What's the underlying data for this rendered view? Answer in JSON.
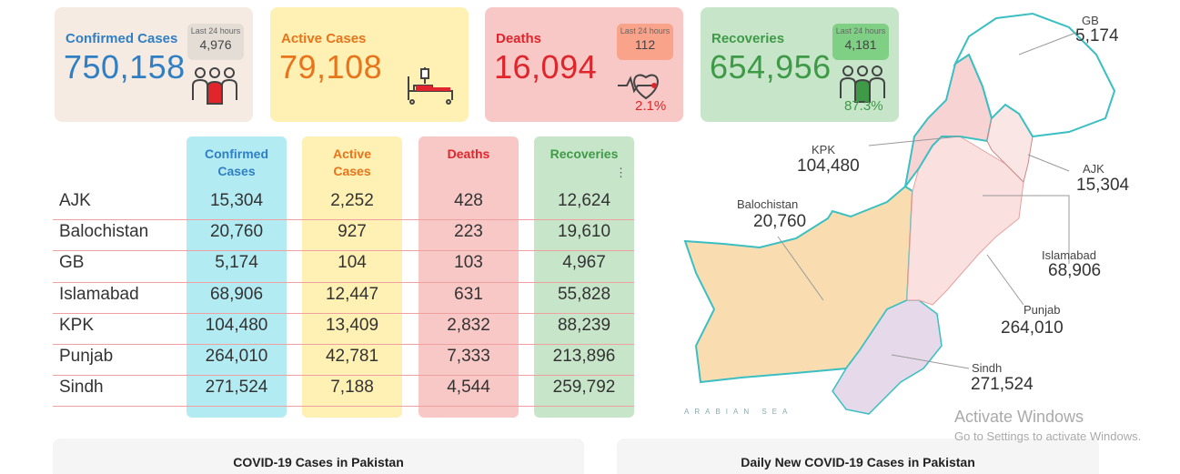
{
  "summary": {
    "confirmed": {
      "title": "Confirmed Cases",
      "value": "750,158",
      "last24_label": "Last 24 hours",
      "last24": "4,976",
      "color": "#2f7fc4"
    },
    "active": {
      "title": "Active Cases",
      "value": "79,108",
      "color": "#e8741b"
    },
    "deaths": {
      "title": "Deaths",
      "value": "16,094",
      "last24_label": "Last 24 hours",
      "last24": "112",
      "pct": "2.1%",
      "color": "#e0262c"
    },
    "recoveries": {
      "title": "Recoveries",
      "value": "654,956",
      "last24_label": "Last 24 hours",
      "last24": "4,181",
      "pct": "87.3%",
      "color": "#3e9a47"
    }
  },
  "table": {
    "headers": {
      "confirmed": "Confirmed Cases",
      "active": "Active Cases",
      "deaths": "Deaths",
      "recoveries": "Recoveries"
    },
    "menu_icon": "⋮",
    "rows": [
      {
        "name": "AJK",
        "confirmed": "15,304",
        "active": "2,252",
        "deaths": "428",
        "recoveries": "12,624"
      },
      {
        "name": "Balochistan",
        "confirmed": "20,760",
        "active": "927",
        "deaths": "223",
        "recoveries": "19,610"
      },
      {
        "name": "GB",
        "confirmed": "5,174",
        "active": "104",
        "deaths": "103",
        "recoveries": "4,967"
      },
      {
        "name": "Islamabad",
        "confirmed": "68,906",
        "active": "12,447",
        "deaths": "631",
        "recoveries": "55,828"
      },
      {
        "name": "KPK",
        "confirmed": "104,480",
        "active": "13,409",
        "deaths": "2,832",
        "recoveries": "88,239"
      },
      {
        "name": "Punjab",
        "confirmed": "264,010",
        "active": "42,781",
        "deaths": "7,333",
        "recoveries": "213,896"
      },
      {
        "name": "Sindh",
        "confirmed": "271,524",
        "active": "7,188",
        "deaths": "4,544",
        "recoveries": "259,792"
      }
    ]
  },
  "map": {
    "labels": {
      "gb": {
        "name": "GB",
        "value": "5,174"
      },
      "kpk": {
        "name": "KPK",
        "value": "104,480"
      },
      "ajk": {
        "name": "AJK",
        "value": "15,304"
      },
      "balochistan": {
        "name": "Balochistan",
        "value": "20,760"
      },
      "islamabad": {
        "name": "Islamabad",
        "value": "68,906"
      },
      "punjab": {
        "name": "Punjab",
        "value": "264,010"
      },
      "sindh": {
        "name": "Sindh",
        "value": "271,524"
      }
    },
    "sea_label": "ARABIAN SEA",
    "region_colors": {
      "balochistan": "#f9ddb0",
      "sindh": "#e5d9ea",
      "punjab": "#fbe0e0",
      "kpk": "#f7d3d3",
      "gb": "#ffffff",
      "ajk": "#fbe6e6",
      "border": "#3bbfc2"
    }
  },
  "bottom": {
    "left_title": "COVID-19 Cases in Pakistan",
    "right_title": "Daily New COVID-19 Cases in Pakistan"
  },
  "watermark": {
    "line1": "Activate Windows",
    "line2": "Go to Settings to activate Windows."
  }
}
